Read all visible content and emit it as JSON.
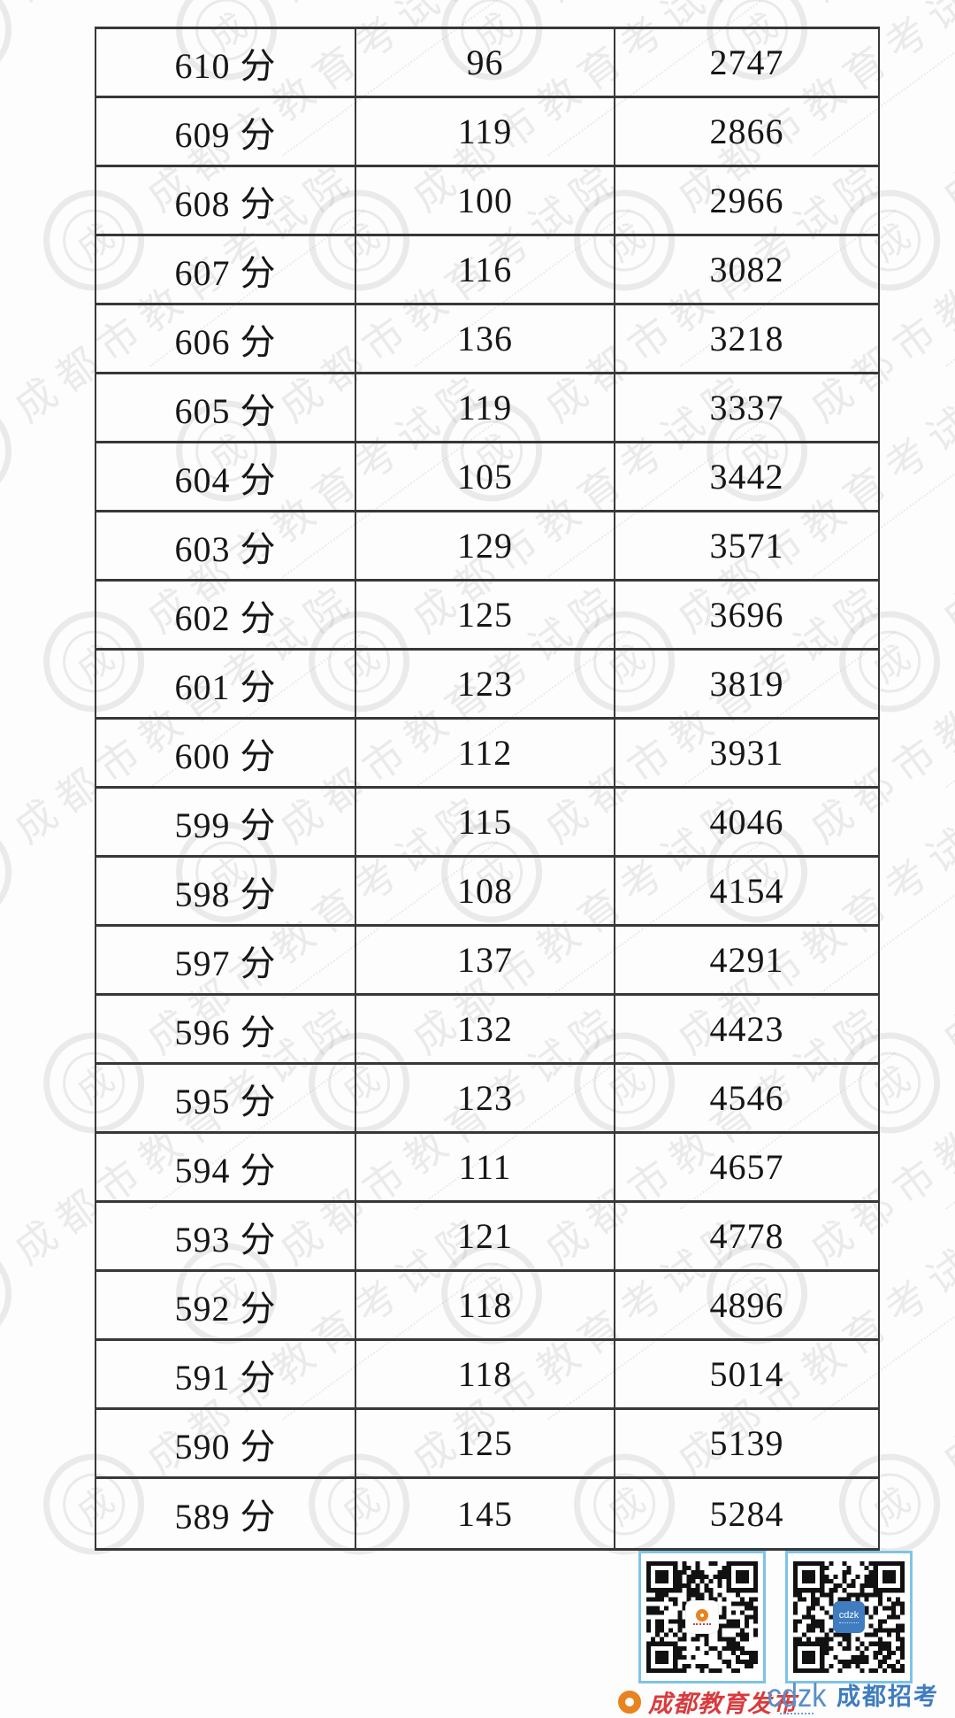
{
  "watermark": {
    "text": "成都市教育考试院",
    "seal_char": "成"
  },
  "table": {
    "rows": [
      {
        "score": "610 分",
        "count": "96",
        "cumulative": "2747"
      },
      {
        "score": "609 分",
        "count": "119",
        "cumulative": "2866"
      },
      {
        "score": "608 分",
        "count": "100",
        "cumulative": "2966"
      },
      {
        "score": "607 分",
        "count": "116",
        "cumulative": "3082"
      },
      {
        "score": "606 分",
        "count": "136",
        "cumulative": "3218"
      },
      {
        "score": "605 分",
        "count": "119",
        "cumulative": "3337"
      },
      {
        "score": "604 分",
        "count": "105",
        "cumulative": "3442"
      },
      {
        "score": "603 分",
        "count": "129",
        "cumulative": "3571"
      },
      {
        "score": "602 分",
        "count": "125",
        "cumulative": "3696"
      },
      {
        "score": "601 分",
        "count": "123",
        "cumulative": "3819"
      },
      {
        "score": "600 分",
        "count": "112",
        "cumulative": "3931"
      },
      {
        "score": "599 分",
        "count": "115",
        "cumulative": "4046"
      },
      {
        "score": "598 分",
        "count": "108",
        "cumulative": "4154"
      },
      {
        "score": "597 分",
        "count": "137",
        "cumulative": "4291"
      },
      {
        "score": "596 分",
        "count": "132",
        "cumulative": "4423"
      },
      {
        "score": "595 分",
        "count": "123",
        "cumulative": "4546"
      },
      {
        "score": "594 分",
        "count": "111",
        "cumulative": "4657"
      },
      {
        "score": "593 分",
        "count": "121",
        "cumulative": "4778"
      },
      {
        "score": "592 分",
        "count": "118",
        "cumulative": "4896"
      },
      {
        "score": "591 分",
        "count": "118",
        "cumulative": "5014"
      },
      {
        "score": "590 分",
        "count": "125",
        "cumulative": "5139"
      },
      {
        "score": "589 分",
        "count": "145",
        "cumulative": "5284"
      }
    ]
  },
  "qr_section": {
    "left_label": "成都教育发布",
    "right_logo_text": "cdzk",
    "right_label": "成都招考"
  },
  "colors": {
    "table_border": "#383838",
    "qr_frame": "#7fc3e6",
    "left_label_red": "#d93b3d",
    "left_logo_orange": "#e8831f",
    "right_label_blue": "#3f7cc0",
    "watermark_gray": "#8f8f8f"
  }
}
